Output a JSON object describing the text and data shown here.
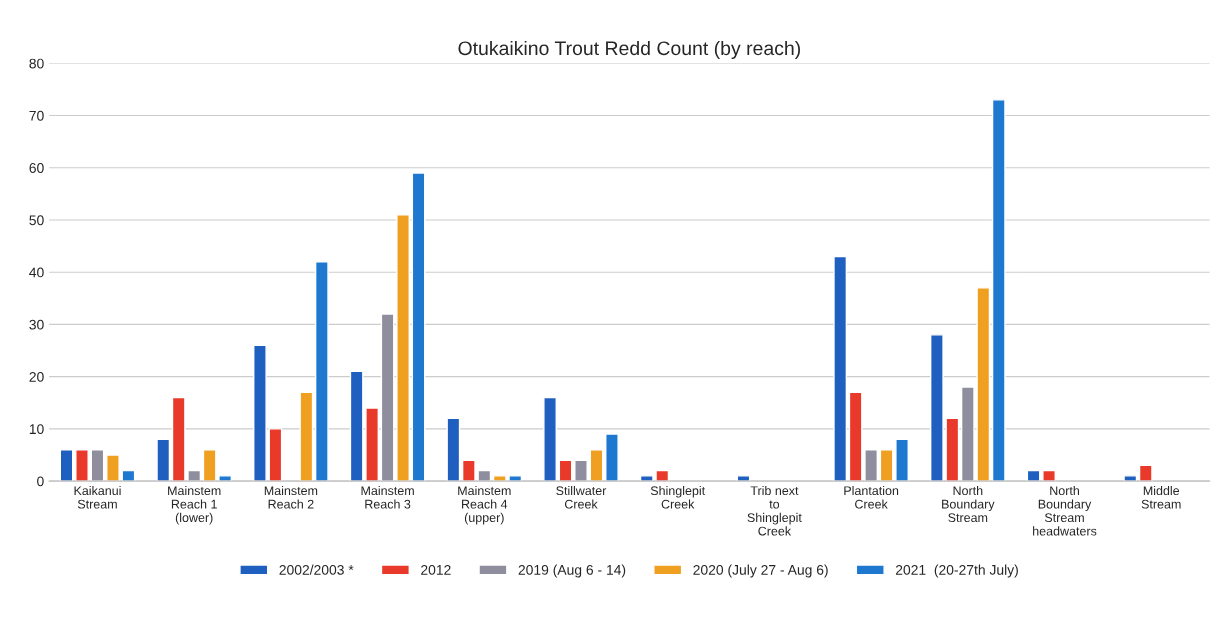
{
  "chart_data": {
    "type": "bar",
    "title": "Otukaikino Trout Redd Count (by reach)",
    "categories": [
      "Kaikanui Stream",
      "Mainstem Reach 1 (lower)",
      "Mainstem Reach 2",
      "Mainstem Reach 3",
      "Mainstem Reach 4 (upper)",
      "Stillwater Creek",
      "Shinglepit Creek",
      "Trib next to Shinglepit Creek",
      "Plantation Creek",
      "North Boundary Stream",
      "North Boundary Stream headwaters",
      "Middle Stream"
    ],
    "series": [
      {
        "name": "2002/2003 *",
        "color": "#1f5fbf",
        "values": [
          6,
          8,
          26,
          21,
          12,
          16,
          1,
          1,
          43,
          28,
          2,
          1
        ]
      },
      {
        "name": "2012",
        "color": "#e8392a",
        "values": [
          6,
          16,
          10,
          14,
          4,
          4,
          2,
          null,
          17,
          12,
          2,
          3
        ]
      },
      {
        "name": "2019 (Aug 6 - 14)",
        "color": "#8e8e9e",
        "values": [
          6,
          2,
          null,
          32,
          2,
          4,
          null,
          null,
          6,
          18,
          null,
          null
        ]
      },
      {
        "name": "2020 (July 27 - Aug 6)",
        "color": "#f0a020",
        "values": [
          5,
          6,
          17,
          51,
          1,
          6,
          null,
          null,
          6,
          37,
          null,
          null
        ]
      },
      {
        "name": "2021  (20-27th July)",
        "color": "#1e78d0",
        "values": [
          2,
          1,
          42,
          59,
          1,
          9,
          null,
          null,
          8,
          73,
          null,
          null
        ]
      }
    ],
    "ylim": [
      0,
      80
    ],
    "yticks": [
      0,
      10,
      20,
      30,
      40,
      50,
      60,
      70,
      80
    ],
    "grid": "y",
    "legend": "bottom"
  }
}
